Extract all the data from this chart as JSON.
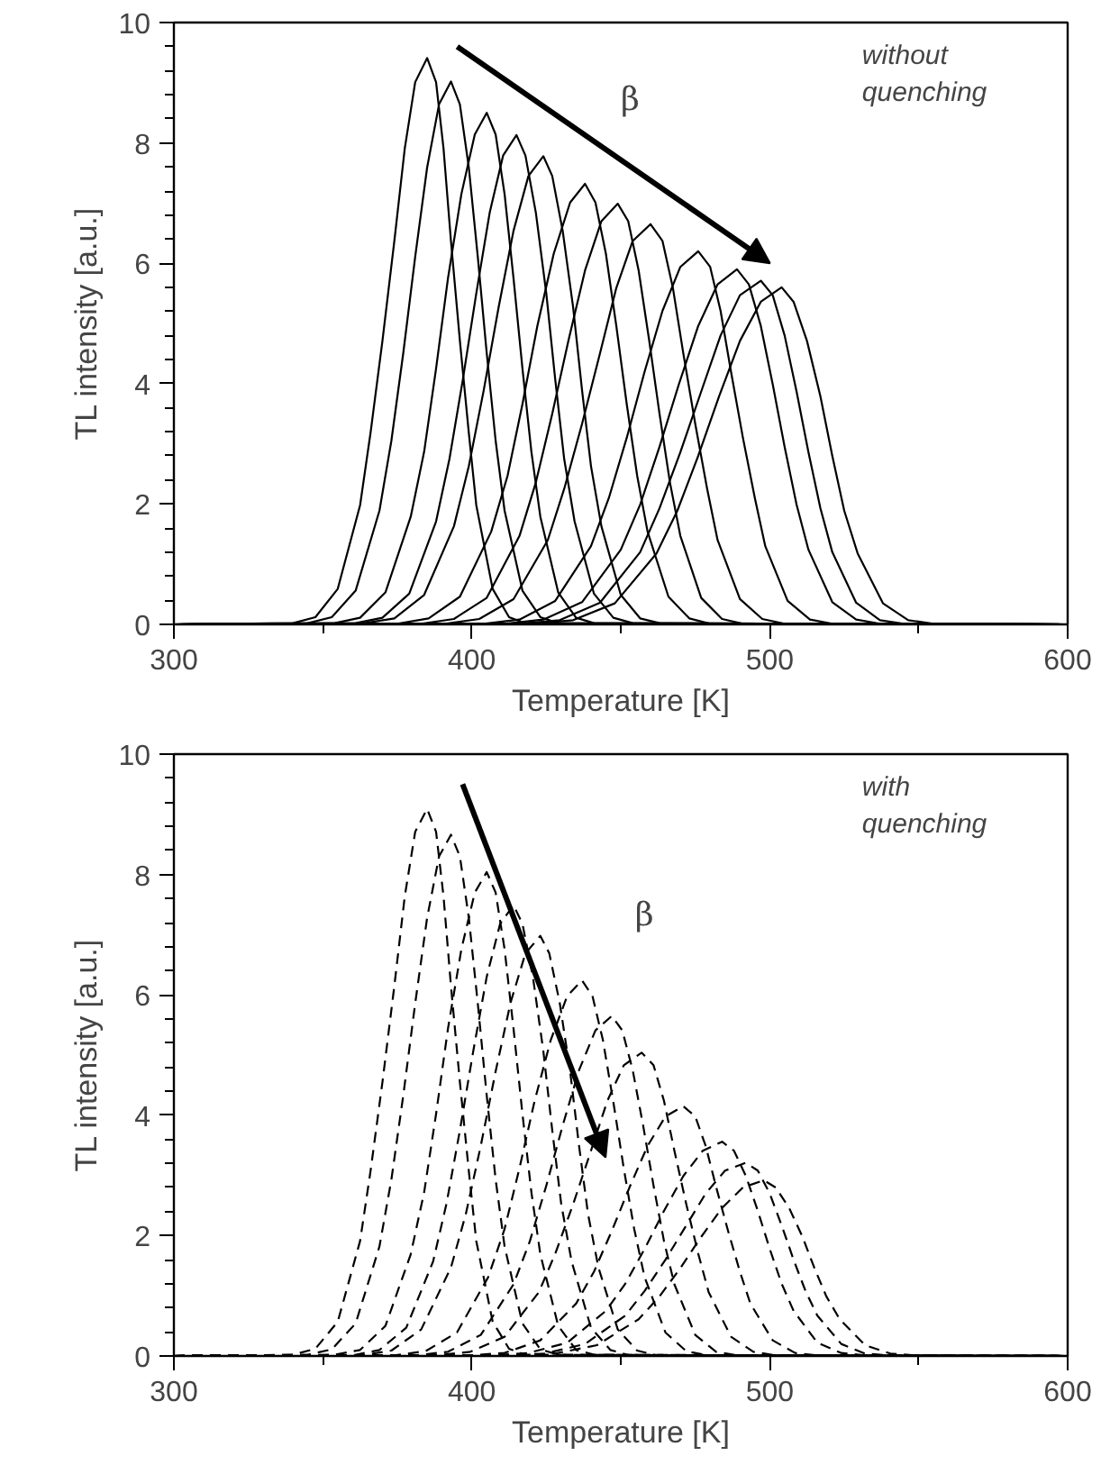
{
  "chart_data": [
    {
      "type": "line",
      "xlabel": "Temperature [K]",
      "ylabel": "TL intensity [a.u.]",
      "line_style": "solid",
      "grid": false,
      "xlim": [
        300,
        600
      ],
      "ylim": [
        0,
        10
      ],
      "xticks": [
        300,
        {
          "value": 350,
          "label": null
        },
        400,
        {
          "value": 450,
          "label": null
        },
        500,
        {
          "value": 550,
          "label": null
        },
        600
      ],
      "yticks": [
        0,
        {
          "value": 0.4,
          "label": null
        },
        {
          "value": 0.8,
          "label": null
        },
        {
          "value": 1.2,
          "label": null
        },
        {
          "value": 1.6,
          "label": null
        },
        2,
        {
          "value": 2.4,
          "label": null
        },
        {
          "value": 2.8,
          "label": null
        },
        {
          "value": 3.2,
          "label": null
        },
        {
          "value": 3.6,
          "label": null
        },
        4,
        {
          "value": 4.4,
          "label": null
        },
        {
          "value": 4.8,
          "label": null
        },
        {
          "value": 5.2,
          "label": null
        },
        {
          "value": 5.6,
          "label": null
        },
        6,
        {
          "value": 6.4,
          "label": null
        },
        {
          "value": 6.8,
          "label": null
        },
        {
          "value": 7.2,
          "label": null
        },
        {
          "value": 7.6,
          "label": null
        },
        8,
        {
          "value": 8.4,
          "label": null
        },
        {
          "value": 8.8,
          "label": null
        },
        {
          "value": 9.2,
          "label": null
        },
        {
          "value": 9.6,
          "label": null
        },
        10
      ],
      "annotations": [
        "β",
        "without\nquenching"
      ],
      "series": [
        {
          "color": "#000000",
          "x": [
            300,
            340,
            347.5,
            355,
            362.5,
            366,
            370,
            374,
            377.5,
            381,
            385,
            388,
            390.5,
            393,
            396,
            399,
            401.5,
            407,
            412.5,
            418,
            600
          ],
          "values": [
            0,
            0.02,
            0.12,
            0.59,
            1.98,
            3.18,
            4.71,
            6.37,
            7.91,
            9.01,
            9.41,
            9.01,
            7.91,
            6.37,
            4.71,
            3.18,
            1.98,
            0.59,
            0.12,
            0.02,
            0
          ]
        },
        {
          "color": "#000000",
          "x": [
            300,
            345,
            353,
            361,
            369,
            373,
            377,
            381,
            385,
            389,
            393,
            396,
            399,
            402,
            405,
            408,
            411,
            417,
            423,
            429,
            600
          ],
          "values": [
            0,
            0.02,
            0.12,
            0.56,
            1.89,
            3.05,
            4.51,
            6.11,
            7.59,
            8.64,
            9.02,
            8.64,
            7.59,
            6.11,
            4.51,
            3.05,
            1.89,
            0.56,
            0.12,
            0.02,
            0
          ]
        },
        {
          "color": "#000000",
          "x": [
            300,
            354,
            362.5,
            371,
            379.5,
            384,
            388,
            392,
            396.5,
            401,
            405,
            408,
            411,
            414,
            417,
            420,
            423,
            429,
            435,
            441,
            600
          ],
          "values": [
            0,
            0.02,
            0.11,
            0.53,
            1.79,
            2.87,
            4.25,
            5.75,
            7.15,
            8.14,
            8.5,
            8.14,
            7.15,
            5.75,
            4.25,
            2.87,
            1.79,
            0.53,
            0.11,
            0.02,
            0
          ]
        },
        {
          "color": "#000000",
          "x": [
            300,
            361,
            370,
            379,
            388,
            392.5,
            397,
            401.5,
            406,
            410.5,
            415,
            418,
            421.5,
            425,
            428,
            431,
            434.5,
            441,
            447.5,
            454,
            600
          ],
          "values": [
            0,
            0.02,
            0.11,
            0.51,
            1.71,
            2.75,
            4.07,
            5.5,
            6.84,
            7.79,
            8.13,
            7.79,
            6.84,
            5.5,
            4.07,
            2.75,
            1.71,
            0.51,
            0.11,
            0.02,
            0
          ]
        },
        {
          "color": "#000000",
          "x": [
            300,
            364,
            374,
            384,
            394,
            399,
            404,
            409,
            414,
            419,
            424,
            427,
            430.5,
            434,
            437,
            440,
            443.5,
            450,
            456.5,
            463,
            600
          ],
          "values": [
            0,
            0.02,
            0.1,
            0.49,
            1.63,
            2.63,
            3.89,
            5.27,
            6.54,
            7.45,
            7.78,
            7.45,
            6.54,
            5.27,
            3.89,
            2.63,
            1.63,
            0.49,
            0.1,
            0.02,
            0
          ]
        },
        {
          "color": "#000000",
          "x": [
            300,
            375,
            385.5,
            396,
            406.5,
            412,
            417,
            422,
            427.5,
            433,
            438,
            441.5,
            445,
            448.5,
            452,
            455.5,
            459,
            466,
            473,
            480,
            600
          ],
          "values": [
            0,
            0.01,
            0.1,
            0.46,
            1.54,
            2.47,
            3.66,
            4.96,
            6.16,
            7.01,
            7.32,
            7.01,
            6.16,
            4.96,
            3.66,
            2.47,
            1.54,
            0.46,
            0.1,
            0.01,
            0
          ]
        },
        {
          "color": "#000000",
          "x": [
            300,
            383,
            394,
            405,
            416,
            421.5,
            427,
            432.5,
            438,
            443.5,
            449,
            452.5,
            456,
            459.5,
            463,
            466.5,
            470,
            477,
            484,
            491,
            600
          ],
          "values": [
            0,
            0.01,
            0.09,
            0.44,
            1.47,
            2.36,
            3.5,
            4.73,
            5.88,
            6.7,
            6.99,
            6.7,
            5.88,
            4.73,
            3.5,
            2.36,
            1.47,
            0.44,
            0.09,
            0.01,
            0
          ]
        },
        {
          "color": "#000000",
          "x": [
            300,
            391,
            402.5,
            414,
            425.5,
            431,
            437,
            443,
            448.5,
            454,
            460,
            464,
            467.5,
            471,
            475,
            479,
            482.5,
            490,
            497.5,
            505,
            600
          ],
          "values": [
            0,
            0.01,
            0.09,
            0.42,
            1.4,
            2.25,
            3.33,
            4.5,
            5.59,
            6.37,
            6.65,
            6.37,
            5.59,
            4.5,
            3.33,
            2.25,
            1.4,
            0.42,
            0.09,
            0.01,
            0
          ]
        },
        {
          "color": "#000000",
          "x": [
            300,
            404,
            416,
            428,
            440,
            446,
            452,
            458,
            464,
            470,
            476,
            480,
            483.5,
            487,
            491,
            495,
            498.5,
            506,
            513.5,
            521,
            600
          ],
          "values": [
            0,
            0.01,
            0.08,
            0.39,
            1.3,
            2.1,
            3.1,
            4.2,
            5.21,
            5.94,
            6.2,
            5.94,
            5.21,
            4.2,
            3.1,
            2.1,
            1.3,
            0.39,
            0.08,
            0.01,
            0
          ]
        },
        {
          "color": "#000000",
          "x": [
            300,
            411,
            424,
            437,
            450,
            456.5,
            463,
            469.5,
            476,
            482.5,
            489,
            493,
            497,
            501,
            505,
            509,
            513,
            521,
            529,
            537,
            600
          ],
          "values": [
            0,
            0.01,
            0.08,
            0.37,
            1.24,
            1.99,
            2.95,
            3.99,
            4.96,
            5.65,
            5.9,
            5.65,
            4.96,
            3.99,
            2.95,
            1.99,
            1.24,
            0.37,
            0.08,
            0.01,
            0
          ]
        },
        {
          "color": "#000000",
          "x": [
            300,
            416,
            429.5,
            443,
            456.5,
            463,
            470,
            477,
            483.5,
            490,
            497,
            501,
            505,
            509,
            513,
            517,
            521,
            529,
            537,
            545,
            600
          ],
          "values": [
            0,
            0.01,
            0.07,
            0.36,
            1.2,
            1.93,
            2.86,
            3.87,
            4.8,
            5.47,
            5.71,
            5.47,
            4.8,
            3.87,
            2.86,
            1.93,
            1.2,
            0.36,
            0.07,
            0.01,
            0
          ]
        },
        {
          "color": "#000000",
          "x": [
            300,
            420,
            434,
            448,
            462,
            469,
            476,
            483,
            490,
            497,
            504,
            508,
            512.5,
            517,
            521,
            525,
            529.5,
            538,
            546.5,
            555,
            600
          ],
          "values": [
            0,
            0.01,
            0.07,
            0.35,
            1.18,
            1.89,
            2.8,
            3.79,
            4.71,
            5.36,
            5.6,
            5.36,
            4.71,
            3.79,
            2.8,
            1.89,
            1.18,
            0.35,
            0.07,
            0.01,
            0
          ]
        }
      ]
    },
    {
      "type": "line",
      "xlabel": "Temperature [K]",
      "ylabel": "TL intensity [a.u.]",
      "line_style": "dashed",
      "grid": false,
      "xlim": [
        300,
        600
      ],
      "ylim": [
        0,
        10
      ],
      "xticks": [
        300,
        {
          "value": 350,
          "label": null
        },
        400,
        {
          "value": 450,
          "label": null
        },
        500,
        {
          "value": 550,
          "label": null
        },
        600
      ],
      "yticks": [
        0,
        {
          "value": 0.4,
          "label": null
        },
        {
          "value": 0.8,
          "label": null
        },
        {
          "value": 1.2,
          "label": null
        },
        {
          "value": 1.6,
          "label": null
        },
        2,
        {
          "value": 2.4,
          "label": null
        },
        {
          "value": 2.8,
          "label": null
        },
        {
          "value": 3.2,
          "label": null
        },
        {
          "value": 3.6,
          "label": null
        },
        4,
        {
          "value": 4.4,
          "label": null
        },
        {
          "value": 4.8,
          "label": null
        },
        {
          "value": 5.2,
          "label": null
        },
        {
          "value": 5.6,
          "label": null
        },
        6,
        {
          "value": 6.4,
          "label": null
        },
        {
          "value": 6.8,
          "label": null
        },
        {
          "value": 7.2,
          "label": null
        },
        {
          "value": 7.6,
          "label": null
        },
        8,
        {
          "value": 8.4,
          "label": null
        },
        {
          "value": 8.8,
          "label": null
        },
        {
          "value": 9.2,
          "label": null
        },
        {
          "value": 9.6,
          "label": null
        },
        10
      ],
      "annotations": [
        "β",
        "with\nquenching"
      ],
      "series": [
        {
          "color": "#000000",
          "x": [
            300,
            340,
            347.5,
            355,
            362.5,
            366,
            370,
            374,
            377.5,
            381,
            385,
            388,
            390.5,
            393,
            396,
            399,
            401.5,
            407,
            412.5,
            418,
            600
          ],
          "values": [
            0,
            0.02,
            0.12,
            0.57,
            1.91,
            3.07,
            4.55,
            6.15,
            7.64,
            8.71,
            9.09,
            8.71,
            7.64,
            6.15,
            4.55,
            3.07,
            1.91,
            0.57,
            0.12,
            0.02,
            0
          ]
        },
        {
          "color": "#000000",
          "x": [
            300,
            345,
            353,
            361,
            369,
            373,
            377,
            381,
            385,
            389,
            393,
            396,
            399,
            402,
            405,
            408,
            411,
            417,
            423,
            429,
            600
          ],
          "values": [
            0,
            0.02,
            0.11,
            0.54,
            1.82,
            2.93,
            4.33,
            5.86,
            7.28,
            8.3,
            8.66,
            8.3,
            7.28,
            5.86,
            4.33,
            2.93,
            1.82,
            0.54,
            0.11,
            0.02,
            0
          ]
        },
        {
          "color": "#000000",
          "x": [
            300,
            354,
            362.5,
            371,
            379.5,
            384,
            388,
            392,
            396.5,
            401,
            405,
            408,
            411,
            414,
            417,
            420,
            423,
            429,
            435,
            441,
            600
          ],
          "values": [
            0,
            0.02,
            0.1,
            0.5,
            1.69,
            2.72,
            4.02,
            5.44,
            6.76,
            7.7,
            8.04,
            7.7,
            6.76,
            5.44,
            4.02,
            2.72,
            1.69,
            0.5,
            0.1,
            0.02,
            0
          ]
        },
        {
          "color": "#000000",
          "x": [
            300,
            360,
            369,
            378,
            387,
            391.5,
            396,
            400.5,
            405,
            409.5,
            414,
            417,
            420.5,
            424,
            427,
            430,
            433.5,
            440,
            446.5,
            453,
            600
          ],
          "values": [
            0,
            0.01,
            0.1,
            0.47,
            1.57,
            2.53,
            3.75,
            5.07,
            6.3,
            7.18,
            7.49,
            7.18,
            6.3,
            5.07,
            3.75,
            2.53,
            1.57,
            0.47,
            0.1,
            0.01,
            0
          ]
        },
        {
          "color": "#000000",
          "x": [
            300,
            363,
            373,
            383,
            393,
            398,
            403,
            408,
            413,
            418,
            423,
            426,
            429.5,
            433,
            436,
            439,
            442.5,
            449,
            455.5,
            462,
            600
          ],
          "values": [
            0,
            0.01,
            0.09,
            0.44,
            1.47,
            2.36,
            3.49,
            4.73,
            5.87,
            6.69,
            6.98,
            6.69,
            5.87,
            4.73,
            3.49,
            2.36,
            1.47,
            0.44,
            0.09,
            0.01,
            0
          ]
        },
        {
          "color": "#000000",
          "x": [
            300,
            374,
            384.5,
            395,
            405.5,
            411,
            416,
            421,
            426.5,
            432,
            437,
            440.5,
            444,
            447.5,
            451,
            454.5,
            458,
            465,
            472,
            479,
            600
          ],
          "values": [
            0,
            0.01,
            0.08,
            0.39,
            1.31,
            2.11,
            3.12,
            4.22,
            5.25,
            5.98,
            6.24,
            5.98,
            5.25,
            4.22,
            3.12,
            2.11,
            1.31,
            0.39,
            0.08,
            0.01,
            0
          ]
        },
        {
          "color": "#000000",
          "x": [
            300,
            381,
            392,
            403,
            414,
            419.5,
            425,
            430.5,
            436,
            441.5,
            447,
            450.5,
            454,
            457.5,
            461,
            464.5,
            468,
            475,
            482,
            489,
            600
          ],
          "values": [
            0,
            0.01,
            0.07,
            0.35,
            1.19,
            1.91,
            2.83,
            3.83,
            4.75,
            5.41,
            5.65,
            5.41,
            4.75,
            3.83,
            2.83,
            1.91,
            1.19,
            0.35,
            0.07,
            0.01,
            0
          ]
        },
        {
          "color": "#000000",
          "x": [
            300,
            388,
            399.5,
            411,
            422.5,
            428,
            434,
            440,
            445.5,
            451,
            457,
            461,
            464.5,
            468,
            472,
            476,
            479.5,
            487,
            494.5,
            502,
            600
          ],
          "values": [
            0,
            0.01,
            0.07,
            0.32,
            1.06,
            1.7,
            2.52,
            3.41,
            4.24,
            4.83,
            5.04,
            4.83,
            4.24,
            3.41,
            2.52,
            1.7,
            1.06,
            0.32,
            0.07,
            0.01,
            0
          ]
        },
        {
          "color": "#000000",
          "x": [
            300,
            399,
            411,
            423,
            435,
            441,
            447,
            453,
            459,
            465,
            471,
            475,
            478.5,
            482,
            486,
            490,
            493.5,
            501,
            508.5,
            516,
            600
          ],
          "values": [
            0,
            0.01,
            0.05,
            0.26,
            0.87,
            1.4,
            2.08,
            2.81,
            3.49,
            3.98,
            4.15,
            3.98,
            3.49,
            2.81,
            2.08,
            1.4,
            0.87,
            0.26,
            0.05,
            0.01,
            0
          ]
        },
        {
          "color": "#000000",
          "x": [
            300,
            406,
            419,
            432,
            445,
            451.5,
            458,
            464.5,
            471,
            477.5,
            484,
            488,
            492,
            496,
            500,
            504,
            508,
            516,
            524,
            532,
            600
          ],
          "values": [
            0,
            0.01,
            0.05,
            0.22,
            0.75,
            1.2,
            1.78,
            2.41,
            2.99,
            3.41,
            3.56,
            3.41,
            2.99,
            2.41,
            1.78,
            1.2,
            0.75,
            0.22,
            0.05,
            0.01,
            0
          ]
        },
        {
          "color": "#000000",
          "x": [
            300,
            411,
            424.5,
            438,
            451.5,
            458,
            465,
            472,
            478.5,
            485,
            492,
            496,
            500,
            504,
            508,
            512,
            516,
            524,
            532,
            540,
            600
          ],
          "values": [
            0,
            0.01,
            0.04,
            0.2,
            0.67,
            1.08,
            1.6,
            2.17,
            2.7,
            3.08,
            3.21,
            3.08,
            2.7,
            2.17,
            1.6,
            1.08,
            0.67,
            0.2,
            0.04,
            0.01,
            0
          ]
        },
        {
          "color": "#000000",
          "x": [
            300,
            414,
            428,
            442,
            456,
            463,
            470,
            477,
            484,
            491,
            498,
            502,
            506.5,
            511,
            515,
            519,
            523.5,
            532,
            540.5,
            549,
            600
          ],
          "values": [
            0,
            0.01,
            0.04,
            0.18,
            0.61,
            0.99,
            1.46,
            1.98,
            2.46,
            2.8,
            2.92,
            2.8,
            2.46,
            1.98,
            1.46,
            0.99,
            0.61,
            0.18,
            0.04,
            0.01,
            0
          ]
        }
      ]
    }
  ]
}
